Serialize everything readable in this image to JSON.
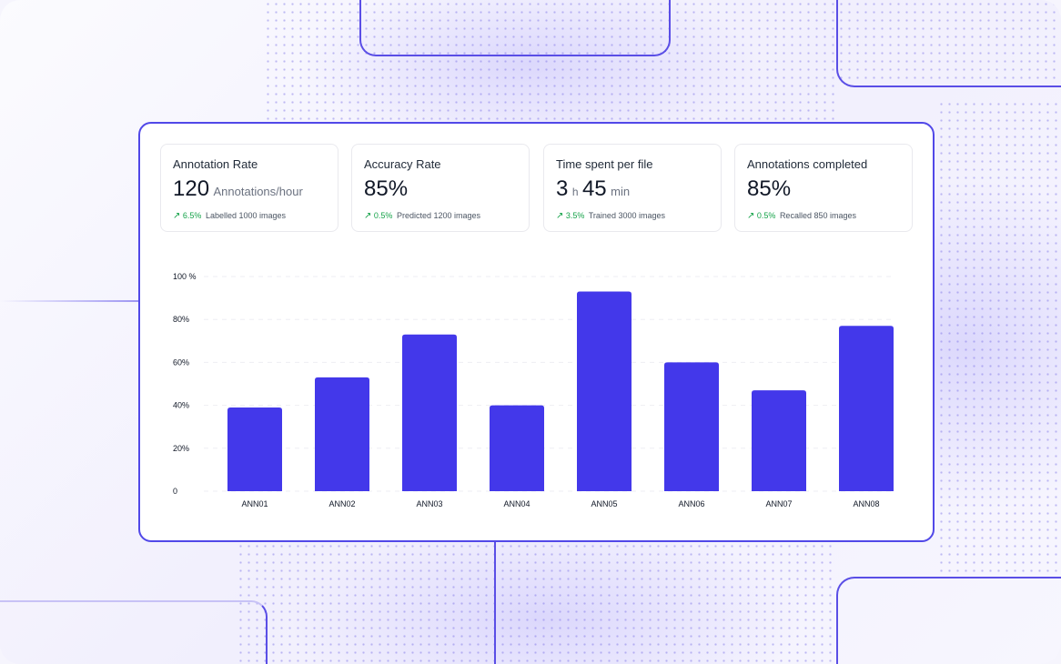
{
  "theme": {
    "accent": "#4338ea",
    "positive": "#16a34a",
    "frame": "#5148e8"
  },
  "kpis": [
    {
      "title": "Annotation Rate",
      "value": "120",
      "unit": "Annotations/hour",
      "trend_icon": "trend-up-icon",
      "change": "6.5%",
      "note": "Labelled 1000 images"
    },
    {
      "title": "Accuracy Rate",
      "value": "85%",
      "trend_icon": "trend-up-icon",
      "change": "0.5%",
      "note": "Predicted 1200 images"
    },
    {
      "title": "Time spent per file",
      "hours": "3",
      "hours_unit": "h",
      "minutes": "45",
      "minutes_unit": "min",
      "trend_icon": "trend-up-icon",
      "change": "3.5%",
      "note": "Trained 3000 images"
    },
    {
      "title": "Annotations completed",
      "value": "85%",
      "trend_icon": "trend-up-icon",
      "change": "0.5%",
      "note": "Recalled 850 images"
    }
  ],
  "chart_data": {
    "type": "bar",
    "title": "",
    "xlabel": "",
    "ylabel": "",
    "categories": [
      "ANN01",
      "ANN02",
      "ANN03",
      "ANN04",
      "ANN05",
      "ANN06",
      "ANN07",
      "ANN08"
    ],
    "values": [
      39,
      53,
      73,
      40,
      93,
      60,
      47,
      77
    ],
    "ylim": [
      0,
      100
    ],
    "yticks": [
      0,
      20,
      40,
      60,
      80,
      100
    ],
    "ytick_labels": [
      "0",
      "20%",
      "40%",
      "60%",
      "80%",
      "100 %"
    ],
    "grid": true,
    "legend": "none",
    "bar_color": "#4338ea"
  }
}
